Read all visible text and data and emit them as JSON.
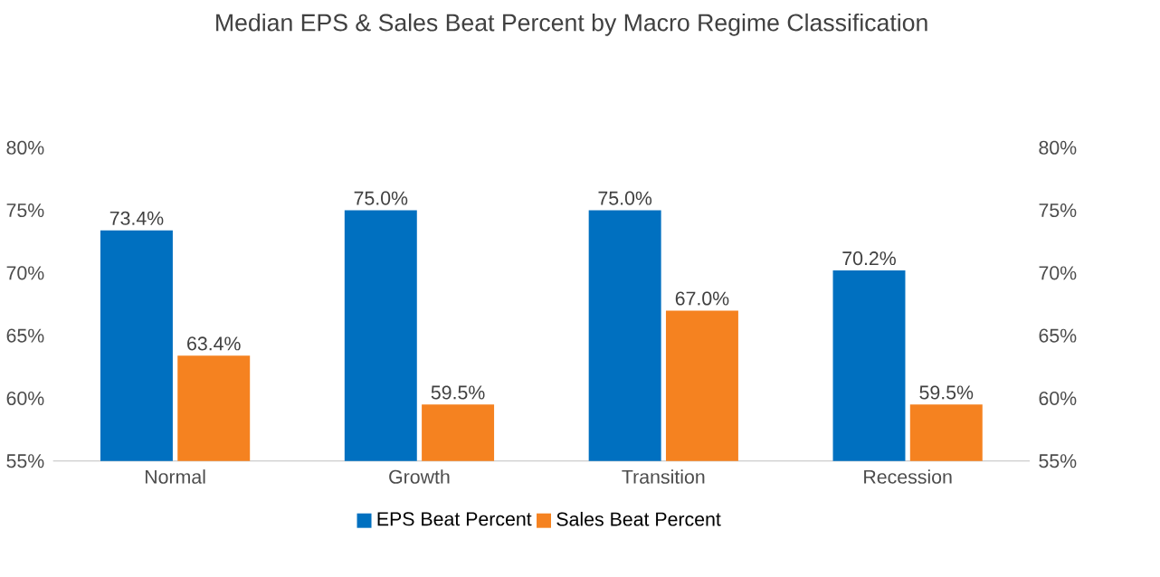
{
  "chart_data": {
    "type": "bar",
    "title": "Median EPS & Sales Beat Percent by Macro Regime Classification",
    "categories": [
      "Normal",
      "Growth",
      "Transition",
      "Recession"
    ],
    "series": [
      {
        "name": "EPS Beat Percent",
        "color": "#0070c0",
        "values": [
          73.4,
          75.0,
          75.0,
          70.2
        ],
        "value_labels": [
          "73.4%",
          "75.0%",
          "75.0%",
          "70.2%"
        ]
      },
      {
        "name": "Sales Beat Percent",
        "color": "#f58220",
        "values": [
          63.4,
          59.5,
          67.0,
          59.5
        ],
        "value_labels": [
          "63.4%",
          "59.5%",
          "67.0%",
          "59.5%"
        ]
      }
    ],
    "ylim": [
      55,
      80
    ],
    "yticks": [
      {
        "value": 55,
        "label": "55%"
      },
      {
        "value": 60,
        "label": "60%"
      },
      {
        "value": 65,
        "label": "65%"
      },
      {
        "value": 70,
        "label": "70%"
      },
      {
        "value": 75,
        "label": "75%"
      },
      {
        "value": 80,
        "label": "80%"
      }
    ],
    "y2lim": [
      55,
      80
    ],
    "y2ticks": [
      {
        "value": 55,
        "label": "55%"
      },
      {
        "value": 60,
        "label": "60%"
      },
      {
        "value": 65,
        "label": "65%"
      },
      {
        "value": 70,
        "label": "70%"
      },
      {
        "value": 75,
        "label": "75%"
      },
      {
        "value": 80,
        "label": "80%"
      }
    ],
    "grid": false,
    "legend": "bottom"
  }
}
